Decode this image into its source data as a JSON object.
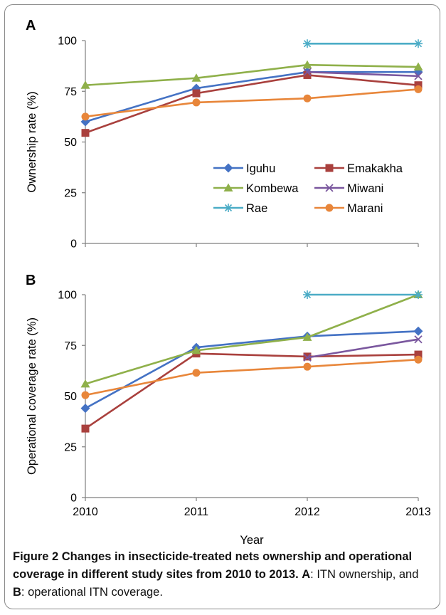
{
  "chart_data": [
    {
      "type": "line",
      "panel_label": "A",
      "categories": [
        "2010",
        "2011",
        "2012",
        "2013"
      ],
      "ylabel": "Ownership rate (%)",
      "ylim": [
        0,
        100
      ],
      "yticks": [
        "0",
        "25",
        "50",
        "75",
        "100"
      ],
      "legend_placement": "center-right",
      "series": [
        {
          "name": "Iguhu",
          "color": "#4472C4",
          "marker": "diamond",
          "values": [
            60,
            76.5,
            84.5,
            84.5
          ]
        },
        {
          "name": "Emakakha",
          "color": "#A9403D",
          "marker": "square",
          "values": [
            54.5,
            74,
            83,
            78
          ]
        },
        {
          "name": "Kombewa",
          "color": "#8FB04A",
          "marker": "triangle",
          "values": [
            78,
            81.5,
            88,
            87
          ]
        },
        {
          "name": "Miwani",
          "color": "#7A579E",
          "marker": "x",
          "values": [
            null,
            null,
            84.5,
            82.5
          ]
        },
        {
          "name": "Rae",
          "color": "#4BACC6",
          "marker": "star",
          "values": [
            null,
            null,
            98.5,
            98.5
          ]
        },
        {
          "name": "Marani",
          "color": "#E8863A",
          "marker": "circle",
          "values": [
            62.5,
            69.5,
            71.5,
            76
          ]
        }
      ]
    },
    {
      "type": "line",
      "panel_label": "B",
      "categories": [
        "2010",
        "2011",
        "2012",
        "2013"
      ],
      "xlabel": "Year",
      "ylabel": "Operational coverage rate (%)",
      "ylim": [
        0,
        100
      ],
      "yticks": [
        "0",
        "25",
        "50",
        "75",
        "100"
      ],
      "series": [
        {
          "name": "Iguhu",
          "color": "#4472C4",
          "marker": "diamond",
          "values": [
            44,
            74,
            79.5,
            82
          ]
        },
        {
          "name": "Emakakha",
          "color": "#A9403D",
          "marker": "square",
          "values": [
            34,
            71,
            69.5,
            70.5
          ]
        },
        {
          "name": "Kombewa",
          "color": "#8FB04A",
          "marker": "triangle",
          "values": [
            56,
            72.5,
            79,
            100
          ]
        },
        {
          "name": "Miwani",
          "color": "#7A579E",
          "marker": "x",
          "values": [
            null,
            null,
            69,
            78
          ]
        },
        {
          "name": "Rae",
          "color": "#4BACC6",
          "marker": "star",
          "values": [
            null,
            null,
            100,
            100
          ]
        },
        {
          "name": "Marani",
          "color": "#E8863A",
          "marker": "circle",
          "values": [
            50.5,
            61.5,
            64.5,
            68
          ]
        }
      ]
    }
  ],
  "caption": {
    "title": "Figure 2 Changes in insecticide-treated nets ownership and operational coverage in different study sites from 2010 to 2013.",
    "part_a_label": "A",
    "part_a_text": ": ITN ownership, and ",
    "part_b_label": "B",
    "part_b_text": ": operational ITN coverage."
  }
}
